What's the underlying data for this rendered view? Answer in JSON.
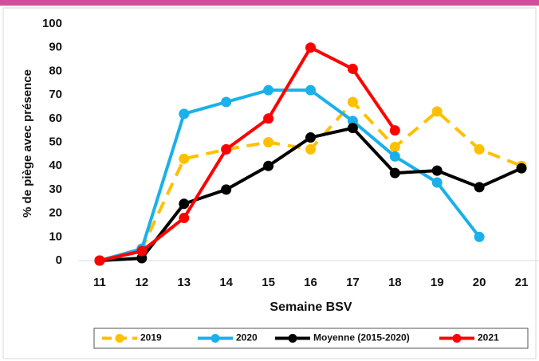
{
  "chart_data": {
    "type": "line",
    "x_label": "Semaine BSV",
    "y_label": "% de piège avec présence",
    "categories": [
      "11",
      "12",
      "13",
      "14",
      "15",
      "16",
      "17",
      "18",
      "19",
      "20",
      "21"
    ],
    "ylim": [
      0,
      100
    ],
    "yticks": [
      0,
      10,
      20,
      30,
      40,
      50,
      60,
      70,
      80,
      90,
      100
    ],
    "grid": false,
    "legend": "bottom",
    "series": [
      {
        "name": "2019",
        "color": "#ffc000",
        "dash": true,
        "values": [
          0,
          5,
          43,
          47,
          50,
          47,
          67,
          48,
          63,
          47,
          40
        ]
      },
      {
        "name": "2020",
        "color": "#1ab0ea",
        "dash": false,
        "values": [
          0,
          5,
          62,
          67,
          72,
          72,
          59,
          44,
          33,
          10,
          null
        ]
      },
      {
        "name": "Moyenne (2015-2020)",
        "color": "#000000",
        "dash": false,
        "values": [
          0,
          1,
          24,
          30,
          40,
          52,
          56,
          37,
          38,
          31,
          39
        ]
      },
      {
        "name": "2021",
        "color": "#ff0000",
        "dash": false,
        "values": [
          0,
          4,
          18,
          47,
          60,
          90,
          81,
          55,
          null,
          null,
          null
        ]
      }
    ]
  }
}
